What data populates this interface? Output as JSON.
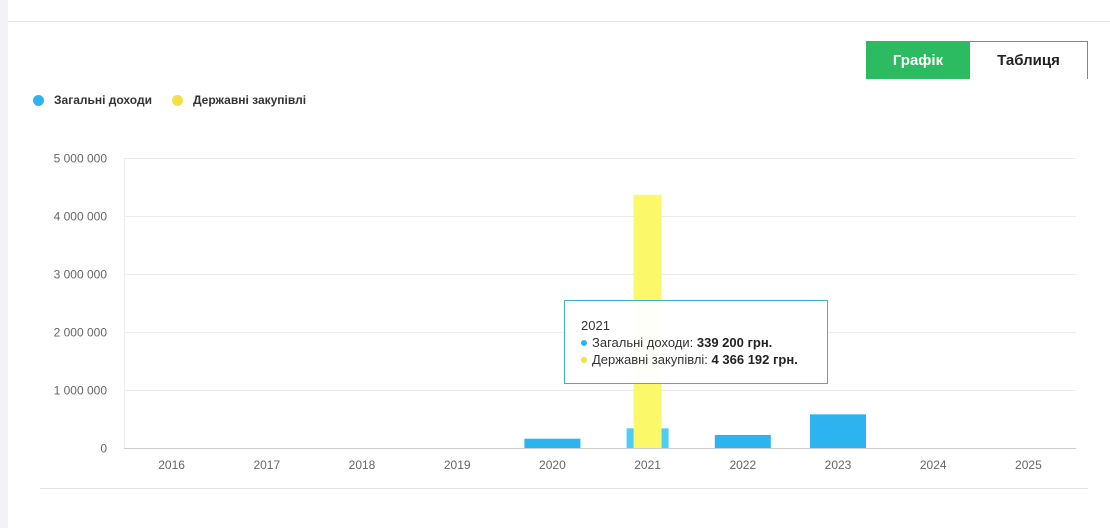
{
  "tabs": {
    "chart_label": "Графік",
    "table_label": "Таблиця"
  },
  "legend": [
    {
      "name": "Загальні доходи",
      "color": "#2db4f0"
    },
    {
      "name": "Державні закупівлі",
      "color": "#f5de4a"
    }
  ],
  "tooltip": {
    "year": "2021",
    "rows": [
      {
        "label": "Загальні доходи:",
        "value": "339 200 грн.",
        "color": "#2db4f0"
      },
      {
        "label": "Державні закупівлі:",
        "value": "4 366 192 грн.",
        "color": "#f5de4a"
      }
    ]
  },
  "chart_data": {
    "type": "bar",
    "categories": [
      "2016",
      "2017",
      "2018",
      "2019",
      "2020",
      "2021",
      "2022",
      "2023",
      "2024",
      "2025"
    ],
    "series": [
      {
        "name": "Загальні доходи",
        "color": "#2db4f0",
        "values": [
          0,
          0,
          0,
          0,
          160000,
          339200,
          225000,
          580000,
          0,
          0
        ]
      },
      {
        "name": "Державні закупівлі",
        "color": "#fbf86a",
        "values": [
          0,
          0,
          0,
          0,
          0,
          4366192,
          0,
          0,
          0,
          0
        ]
      }
    ],
    "y_ticks": [
      "0",
      "1 000 000",
      "2 000 000",
      "3 000 000",
      "4 000 000",
      "5 000 000"
    ],
    "ylim": [
      0,
      5000000
    ],
    "grid": true,
    "legend_position": "top-left",
    "highlighted_category": "2021",
    "highlight_color": "#4dccf5"
  }
}
